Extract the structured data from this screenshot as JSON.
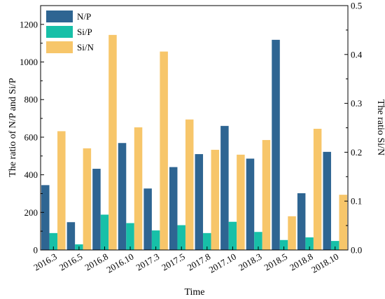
{
  "chart_data": {
    "type": "bar",
    "categories": [
      "2016.3",
      "2016.5",
      "2016.8",
      "2016.10",
      "2017.3",
      "2017.5",
      "2017.8",
      "2017.10",
      "2018.3",
      "2018.5",
      "2018.8",
      "2018.10"
    ],
    "series": [
      {
        "name": "N/P",
        "axis": "left",
        "color": "#2e6592",
        "values": [
          345,
          148,
          432,
          569,
          327,
          441,
          510,
          660,
          486,
          1118,
          302,
          522
        ]
      },
      {
        "name": "Si/P",
        "axis": "left",
        "color": "#17c0a8",
        "values": [
          90,
          30,
          188,
          143,
          104,
          132,
          90,
          150,
          96,
          53,
          67,
          48
        ]
      },
      {
        "name": "Si/N",
        "axis": "right",
        "color": "#f7c66a",
        "values": [
          0.243,
          0.208,
          0.44,
          0.251,
          0.406,
          0.267,
          0.205,
          0.195,
          0.225,
          0.069,
          0.248,
          0.113
        ]
      }
    ],
    "xlabel": "Time",
    "ylabel": "The ratio of N/P and Si/P",
    "y2label": "The ratio Si/N",
    "ylim": [
      0,
      1300
    ],
    "y2lim": [
      0,
      0.5
    ],
    "yticks": [
      0,
      200,
      400,
      600,
      800,
      1000,
      1200
    ],
    "y2ticks": [
      0.0,
      0.1,
      0.2,
      0.3,
      0.4,
      0.5
    ],
    "y2tick_labels": [
      "0.0",
      "0.1",
      "0.2",
      "0.3",
      "0.4",
      "0.5"
    ],
    "legend": {
      "position": "top-left",
      "entries": [
        "N/P",
        "Si/P",
        "Si/N"
      ]
    },
    "grid": false
  }
}
